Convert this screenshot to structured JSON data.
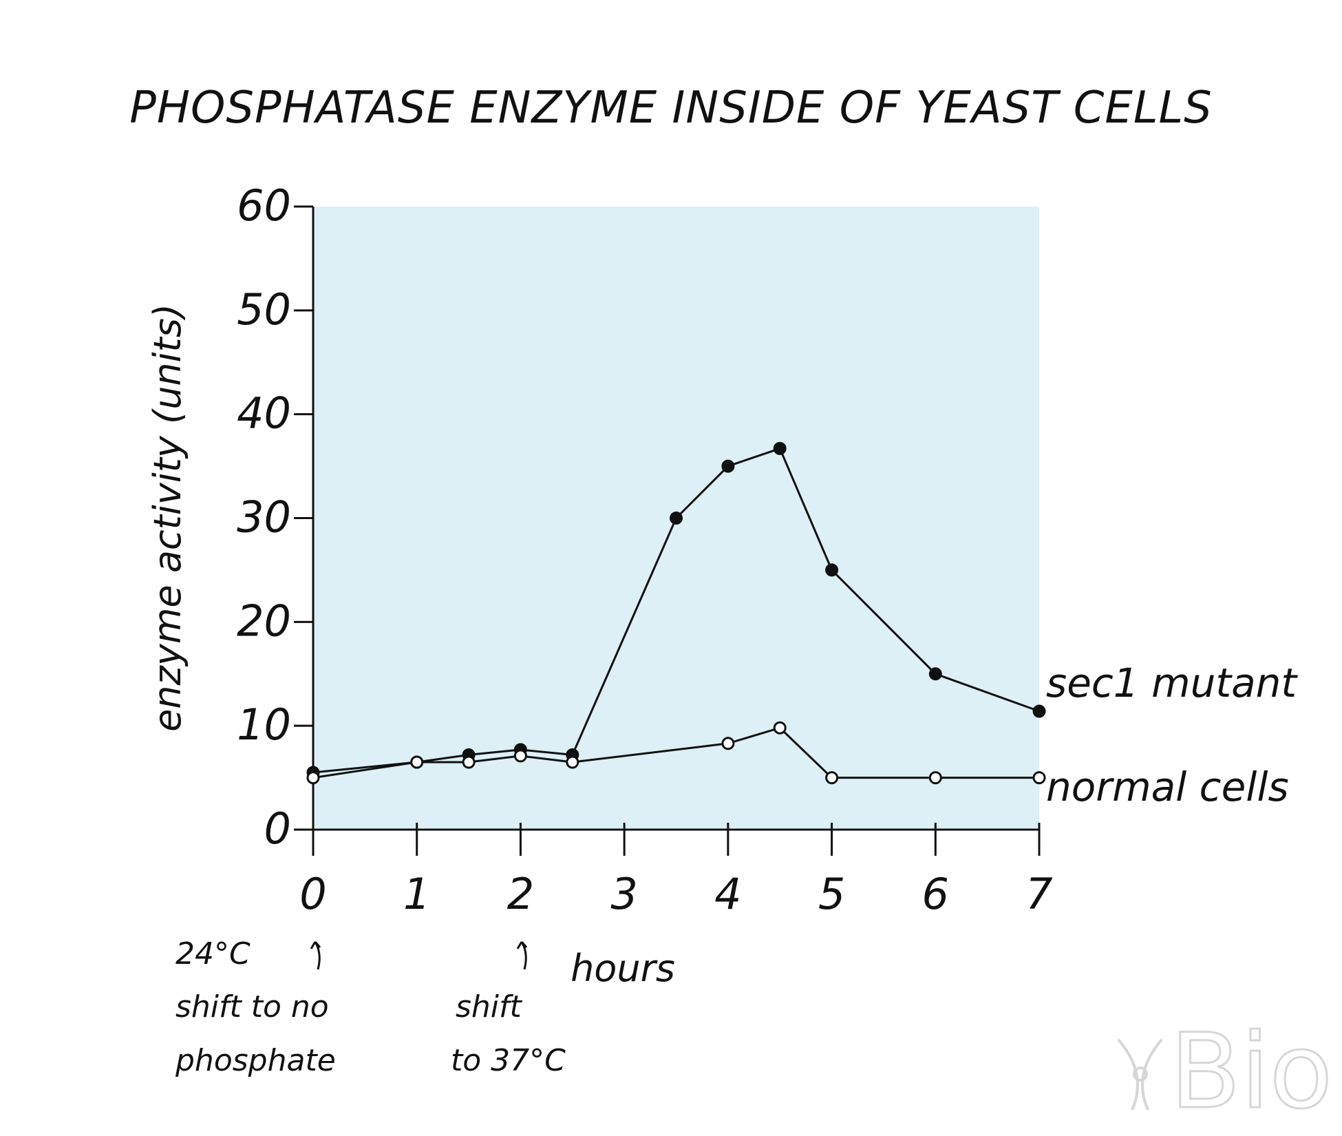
{
  "chart_data": {
    "type": "line",
    "title": "PHOSPHATASE ENZYME INSIDE OF YEAST CELLS",
    "xlabel": "hours",
    "ylabel": "enzyme activity (units)",
    "xlim": [
      0,
      7
    ],
    "ylim": [
      0,
      60
    ],
    "x_ticks": [
      "0",
      "1",
      "2",
      "3",
      "4",
      "5",
      "6",
      "7"
    ],
    "y_ticks": [
      "0",
      "10",
      "20",
      "30",
      "40",
      "50",
      "60"
    ],
    "grid": false,
    "background_color": "#dcf0f5",
    "series": [
      {
        "name": "sec1 mutant",
        "marker": "filled-circle",
        "color": "#111111",
        "points": [
          [
            0,
            5.5
          ],
          [
            1,
            6.5
          ],
          [
            1.5,
            7.2
          ],
          [
            2,
            7.7
          ],
          [
            2.5,
            7.2
          ],
          [
            3.5,
            30
          ],
          [
            4,
            35
          ],
          [
            4.5,
            36.7
          ],
          [
            5,
            25
          ],
          [
            6,
            15
          ],
          [
            7,
            11.4
          ]
        ]
      },
      {
        "name": "normal cells",
        "marker": "open-circle",
        "color": "#111111",
        "points": [
          [
            0,
            5
          ],
          [
            1,
            6.5
          ],
          [
            1.5,
            6.5
          ],
          [
            2,
            7.1
          ],
          [
            2.5,
            6.5
          ],
          [
            4,
            8.3
          ],
          [
            4.5,
            9.8
          ],
          [
            5,
            5
          ],
          [
            6,
            5
          ],
          [
            7,
            5
          ]
        ]
      }
    ],
    "annotations": [
      {
        "text_lines": [
          "24°C",
          "shift to no",
          "phosphate"
        ],
        "at_x": 0
      },
      {
        "text_lines": [
          "shift",
          "to 37°C"
        ],
        "at_x": 2
      }
    ]
  },
  "watermark": {
    "text": "Bio",
    "icon": "x-chromosome-icon"
  }
}
